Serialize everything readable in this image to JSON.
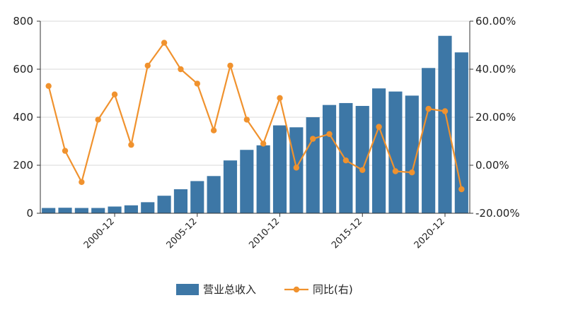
{
  "chart_data": {
    "type": "bar",
    "title": "",
    "x": [
      "1996-12",
      "1997-12",
      "1998-12",
      "1999-12",
      "2000-12",
      "2001-12",
      "2002-12",
      "2003-12",
      "2004-12",
      "2005-12",
      "2006-12",
      "2007-12",
      "2008-12",
      "2009-12",
      "2010-12",
      "2011-12",
      "2012-12",
      "2013-12",
      "2014-12",
      "2015-12",
      "2016-12",
      "2017-12",
      "2018-12",
      "2019-12",
      "2020-12",
      "2021-12"
    ],
    "x_tick_labels": [
      "2000-12",
      "2005-12",
      "2010-12",
      "2015-12",
      "2020-12"
    ],
    "series": [
      {
        "name": "营业总收入",
        "type": "bar",
        "axis": "left",
        "color": "#3d77a6",
        "values": [
          22,
          23,
          22,
          22,
          28,
          33,
          46,
          73,
          100,
          134,
          155,
          220,
          264,
          283,
          366,
          358,
          400,
          451,
          459,
          447,
          520,
          507,
          490,
          605,
          739,
          670
        ]
      },
      {
        "name": "同比(右)",
        "type": "line",
        "axis": "right",
        "color": "#f0922e",
        "values": [
          33.0,
          6.0,
          -7.0,
          19.0,
          29.5,
          8.5,
          41.5,
          51.0,
          40.0,
          34.0,
          14.5,
          41.5,
          19.0,
          9.0,
          28.0,
          -1.0,
          11.0,
          13.0,
          2.0,
          -2.0,
          16.0,
          -2.5,
          -3.0,
          23.5,
          22.5,
          -10.0
        ]
      }
    ],
    "y_left": {
      "min": 0,
      "max": 800,
      "ticks": [
        "0",
        "200",
        "400",
        "600",
        "800"
      ]
    },
    "y_right": {
      "min": -20,
      "max": 60,
      "ticks": [
        "-20.00%",
        "0.00%",
        "20.00%",
        "40.00%",
        "60.00%"
      ]
    },
    "grid": true,
    "legend": "bottom-center"
  }
}
